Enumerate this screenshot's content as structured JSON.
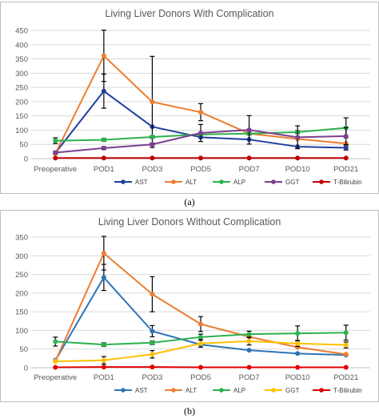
{
  "chart_data": [
    {
      "type": "line",
      "title": "Living Liver Donors With Complication",
      "caption": "(a)",
      "categories": [
        "Preoperative",
        "POD1",
        "POD3",
        "POD5",
        "POD7",
        "POD10",
        "POD21"
      ],
      "ylim": [
        0,
        450
      ],
      "yticks": [
        0,
        50,
        100,
        150,
        200,
        250,
        300,
        350,
        400,
        450
      ],
      "grid": true,
      "legend": "bottom",
      "series": [
        {
          "name": "AST",
          "color": "#1f3f9f",
          "values": [
            20,
            237,
            112,
            75,
            67,
            42,
            38
          ],
          "err": [
            0,
            60,
            0,
            0,
            0,
            0,
            8
          ]
        },
        {
          "name": "ALT",
          "color": "#ed7d31",
          "values": [
            18,
            361,
            199,
            163,
            88,
            69,
            53
          ],
          "err": [
            0,
            90,
            160,
            30,
            0,
            0,
            0
          ]
        },
        {
          "name": "ALP",
          "color": "#2bb24c",
          "values": [
            63,
            66,
            76,
            85,
            88,
            93,
            108
          ],
          "err": [
            10,
            5,
            5,
            5,
            5,
            5,
            35
          ]
        },
        {
          "name": "GGT",
          "color": "#7b3f8f",
          "values": [
            21,
            37,
            50,
            90,
            101,
            75,
            79
          ],
          "err": [
            5,
            5,
            5,
            30,
            50,
            40,
            30
          ]
        },
        {
          "name": "T-Bilirubin",
          "color": "#c00000",
          "values": [
            2,
            2,
            2,
            2,
            2,
            2,
            2
          ],
          "err": [
            0,
            0,
            0,
            0,
            0,
            0,
            0
          ]
        }
      ]
    },
    {
      "type": "line",
      "title": "Living Liver Donors Without Complication",
      "caption": "(b)",
      "categories": [
        "Preoperative",
        "POD1",
        "POD3",
        "POD5",
        "POD7",
        "POD10",
        "POD21"
      ],
      "ylim": [
        0,
        350
      ],
      "yticks": [
        0,
        50,
        100,
        150,
        200,
        250,
        300,
        350
      ],
      "grid": true,
      "legend": "bottom",
      "series": [
        {
          "name": "AST",
          "color": "#2e75b6",
          "values": [
            20,
            242,
            98,
            62,
            47,
            38,
            34
          ],
          "err": [
            0,
            35,
            15,
            0,
            0,
            0,
            0
          ]
        },
        {
          "name": "ALT",
          "color": "#ed7d31",
          "values": [
            18,
            307,
            197,
            117,
            83,
            55,
            36
          ],
          "err": [
            0,
            45,
            47,
            20,
            0,
            0,
            0
          ]
        },
        {
          "name": "ALP",
          "color": "#2bb24c",
          "values": [
            70,
            62,
            67,
            82,
            90,
            92,
            94
          ],
          "err": [
            12,
            5,
            5,
            8,
            8,
            20,
            20
          ]
        },
        {
          "name": "GGT",
          "color": "#ffc000",
          "values": [
            17,
            20,
            36,
            65,
            71,
            65,
            61
          ],
          "err": [
            0,
            10,
            10,
            10,
            10,
            8,
            8
          ]
        },
        {
          "name": "T-Bilirubin",
          "color": "#e00000",
          "values": [
            1,
            2,
            2,
            1,
            1,
            1,
            1
          ],
          "err": [
            0,
            0,
            0,
            0,
            0,
            0,
            0
          ]
        }
      ]
    }
  ]
}
